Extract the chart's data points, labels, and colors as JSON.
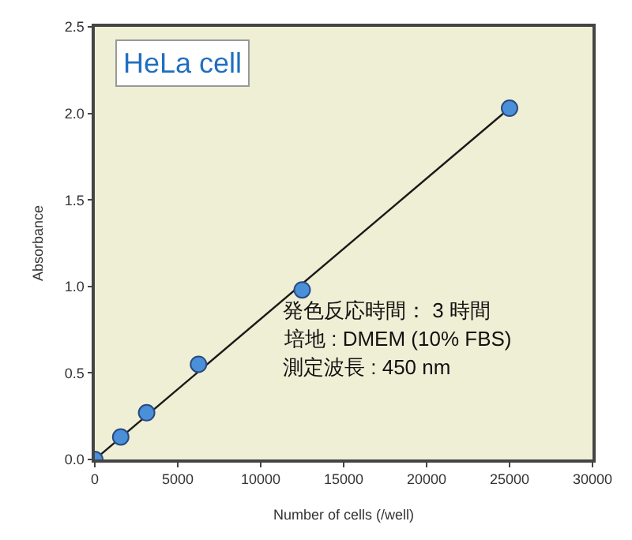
{
  "chart_data": {
    "type": "scatter",
    "title": "HeLa cell",
    "xlabel": "Number of cells (/well)",
    "ylabel": "Absorbance",
    "x": [
      0,
      1563,
      3125,
      6250,
      12500,
      25000
    ],
    "series": [
      {
        "color": "#4a90d9",
        "values": [
          0.0,
          0.13,
          0.27,
          0.55,
          0.98,
          2.03
        ],
        "marker": "circle"
      },
      {
        "type": "line",
        "color": "#1a1a1a",
        "x": [
          0,
          25000
        ],
        "values": [
          0.0,
          2.03
        ],
        "marker": "none",
        "line_style": "solid"
      }
    ],
    "annotations": [
      "発色反応時間： 3 時間",
      "培地 : DMEM (10% FBS)",
      "測定波長 : 450 nm"
    ],
    "xlim": [
      0,
      30000
    ],
    "xticks": [
      0,
      5000,
      10000,
      15000,
      20000,
      25000,
      30000
    ],
    "ylim": [
      0,
      2.5
    ],
    "yticks": [
      {
        "value": 0,
        "label": "0.0"
      },
      {
        "value": 0.5,
        "label": "0.5"
      },
      {
        "value": 1,
        "label": "1.0"
      },
      {
        "value": 1.5,
        "label": "1.5"
      },
      {
        "value": 2,
        "label": "2.0"
      },
      {
        "value": 2.5,
        "label": "2.5"
      }
    ],
    "grid": false
  }
}
